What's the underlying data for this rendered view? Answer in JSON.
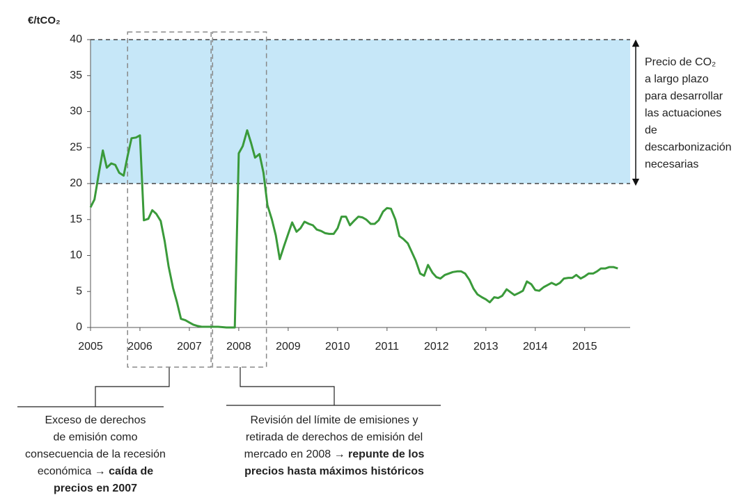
{
  "chart_data": {
    "type": "line",
    "y_label": "€/tCO₂",
    "xlim": [
      2005,
      2015.92
    ],
    "xticks": [
      2005,
      2006,
      2007,
      2008,
      2009,
      2010,
      2011,
      2012,
      2013,
      2014,
      2015
    ],
    "ylim": [
      0,
      40
    ],
    "yticks": [
      0,
      5,
      10,
      15,
      20,
      25,
      30,
      35,
      40
    ],
    "grid": false,
    "band": [
      20,
      40
    ],
    "band_color": "#c6e7f8",
    "highlight_spans": [
      [
        2005.75,
        2007.44
      ],
      [
        2007.47,
        2008.56
      ]
    ],
    "x": [
      2005,
      2005.08,
      2005.17,
      2005.25,
      2005.33,
      2005.42,
      2005.5,
      2005.58,
      2005.67,
      2005.75,
      2005.83,
      2005.92,
      2006,
      2006.08,
      2006.17,
      2006.25,
      2006.33,
      2006.42,
      2006.5,
      2006.58,
      2006.67,
      2006.75,
      2006.83,
      2006.92,
      2007,
      2007.08,
      2007.17,
      2007.25,
      2007.33,
      2007.42,
      2007.5,
      2007.58,
      2007.67,
      2007.75,
      2007.83,
      2007.92,
      2008,
      2008.08,
      2008.17,
      2008.25,
      2008.33,
      2008.42,
      2008.5,
      2008.58,
      2008.67,
      2008.75,
      2008.83,
      2008.92,
      2009,
      2009.08,
      2009.17,
      2009.25,
      2009.33,
      2009.42,
      2009.5,
      2009.58,
      2009.67,
      2009.75,
      2009.83,
      2009.92,
      2010,
      2010.08,
      2010.17,
      2010.25,
      2010.33,
      2010.42,
      2010.5,
      2010.58,
      2010.67,
      2010.75,
      2010.83,
      2010.92,
      2011,
      2011.08,
      2011.17,
      2011.25,
      2011.33,
      2011.42,
      2011.5,
      2011.58,
      2011.67,
      2011.75,
      2011.83,
      2011.92,
      2012,
      2012.08,
      2012.17,
      2012.25,
      2012.33,
      2012.42,
      2012.5,
      2012.58,
      2012.67,
      2012.75,
      2012.83,
      2012.92,
      2013,
      2013.08,
      2013.17,
      2013.25,
      2013.33,
      2013.42,
      2013.5,
      2013.58,
      2013.67,
      2013.75,
      2013.83,
      2013.92,
      2014,
      2014.08,
      2014.17,
      2014.25,
      2014.33,
      2014.42,
      2014.5,
      2014.58,
      2014.67,
      2014.75,
      2014.83,
      2014.92,
      2015,
      2015.08,
      2015.17,
      2015.25,
      2015.33,
      2015.42,
      2015.5,
      2015.58,
      2015.67
    ],
    "series": [
      {
        "color": "#3a9a3a",
        "values": [
          16.7,
          17.8,
          21.5,
          24.6,
          22.2,
          22.8,
          22.6,
          21.5,
          21.1,
          23.8,
          26.3,
          26.4,
          26.7,
          14.9,
          15.1,
          16.3,
          15.8,
          14.8,
          12,
          8.5,
          5.5,
          3.5,
          1.2,
          1,
          0.7,
          0.4,
          0.2,
          0.1,
          0.1,
          0.1,
          0.1,
          0.1,
          0.05,
          0,
          0,
          0,
          24.2,
          25.2,
          27.4,
          25.6,
          23.6,
          24.1,
          21.5,
          17,
          15,
          12.8,
          9.5,
          11.4,
          13,
          14.6,
          13.3,
          13.8,
          14.7,
          14.4,
          14.2,
          13.6,
          13.4,
          13.1,
          13,
          13,
          13.8,
          15.4,
          15.4,
          14.2,
          14.8,
          15.4,
          15.3,
          15,
          14.4,
          14.4,
          14.9,
          16.1,
          16.6,
          16.5,
          15,
          12.7,
          12.3,
          11.7,
          10.5,
          9.3,
          7.5,
          7.2,
          8.7,
          7.6,
          7,
          6.8,
          7.3,
          7.5,
          7.7,
          7.8,
          7.8,
          7.5,
          6.6,
          5.4,
          4.6,
          4.2,
          3.9,
          3.5,
          4.2,
          4.1,
          4.4,
          5.3,
          4.9,
          4.5,
          4.8,
          5.1,
          6.4,
          6,
          5.2,
          5.1,
          5.6,
          5.9,
          6.2,
          5.9,
          6.2,
          6.8,
          6.9,
          6.9,
          7.3,
          6.8,
          7.1,
          7.5,
          7.5,
          7.8,
          8.2,
          8.2,
          8.4,
          8.4,
          8.2
        ]
      }
    ],
    "right_note": [
      "Precio de CO₂",
      "a largo plazo",
      "para desarrollar",
      "las actuaciones",
      "de",
      "descarbonización",
      "necesarias"
    ],
    "annotations": [
      {
        "lines": [
          [
            {
              "text": "Exceso de derechos"
            }
          ],
          [
            {
              "text": "de emisión como"
            }
          ],
          [
            {
              "text": "consecuencia de la recesión"
            }
          ],
          [
            {
              "text": "económica "
            },
            {
              "text": "→ caída de",
              "bold": true
            }
          ],
          [
            {
              "text": "precios en 2007",
              "bold": true
            }
          ]
        ]
      },
      {
        "lines": [
          [
            {
              "text": "Revisión del límite de emisiones y"
            }
          ],
          [
            {
              "text": "retirada de derechos de emisión del"
            }
          ],
          [
            {
              "text": "mercado en 2008 "
            },
            {
              "text": "→ repunte de los",
              "bold": true
            }
          ],
          [
            {
              "text": "precios hasta máximos históricos",
              "bold": true
            }
          ]
        ]
      }
    ]
  }
}
